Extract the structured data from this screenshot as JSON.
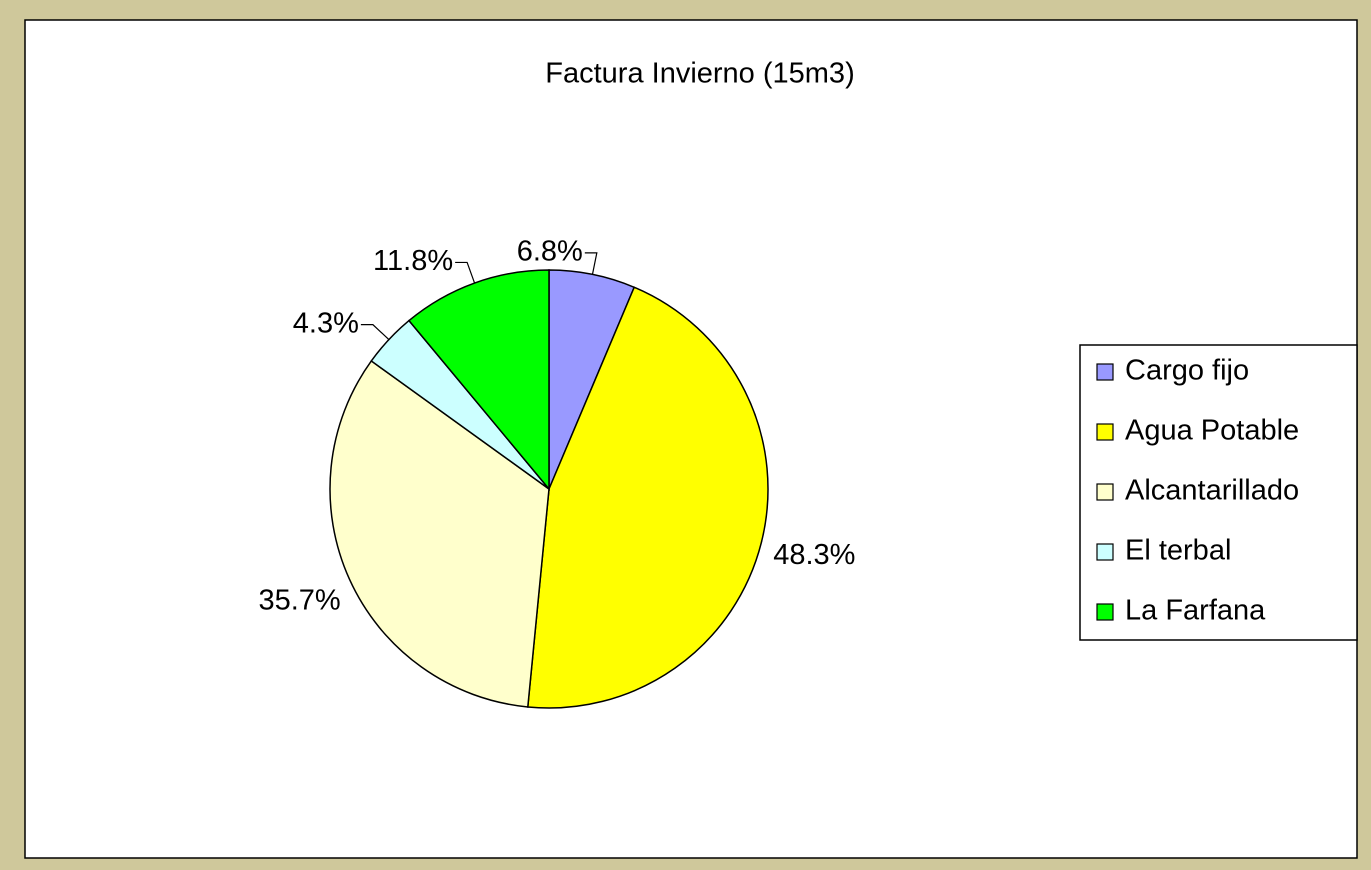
{
  "chart_data": {
    "type": "pie",
    "title": "Factura Invierno (15m3)",
    "categories": [
      "Cargo fijo",
      "Agua Potable",
      "Alcantarillado",
      "El terbal",
      "La Farfana"
    ],
    "values": [
      6.8,
      48.3,
      35.7,
      4.3,
      11.8
    ],
    "value_labels": [
      "6.8%",
      "48.3%",
      "35.7%",
      "4.3%",
      "11.8%"
    ],
    "colors": [
      "#9999ff",
      "#ffff00",
      "#ffffcc",
      "#ccffff",
      "#00ff00"
    ],
    "legend": "right"
  }
}
